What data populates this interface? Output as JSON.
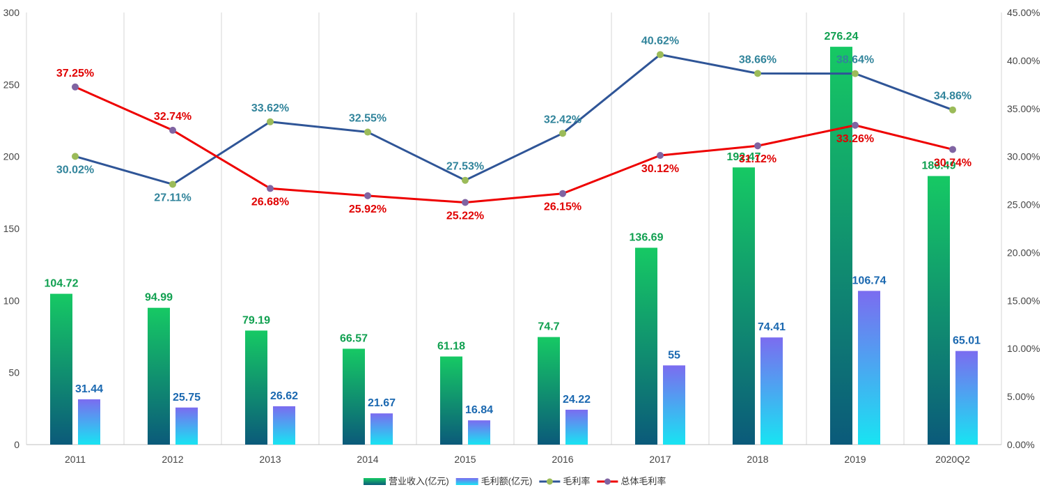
{
  "chart_data": {
    "type": "bar",
    "categories": [
      "2011",
      "2012",
      "2013",
      "2014",
      "2015",
      "2016",
      "2017",
      "2018",
      "2019",
      "2020Q2"
    ],
    "ylim": [
      0,
      300
    ],
    "yticks": [
      "0",
      "50",
      "100",
      "150",
      "200",
      "250",
      "300"
    ],
    "y2lim": [
      0,
      45
    ],
    "y2ticks": [
      "0.00%",
      "5.00%",
      "10.00%",
      "15.00%",
      "20.00%",
      "25.00%",
      "30.00%",
      "35.00%",
      "40.00%",
      "45.00%"
    ],
    "grid": "vertical",
    "legend_position": "bottom",
    "series": [
      {
        "name": "营业收入(亿元)",
        "kind": "bar",
        "axis": "left",
        "values": [
          104.72,
          94.99,
          79.19,
          66.57,
          61.18,
          74.7,
          136.69,
          192.47,
          276.24,
          186.49
        ],
        "labels": [
          "104.72",
          "94.99",
          "79.19",
          "66.57",
          "61.18",
          "74.7",
          "136.69",
          "192.47",
          "276.24",
          "186.49"
        ],
        "color_top": "#16c964",
        "color_bottom": "#0b5a7a",
        "label_color": "#10a050"
      },
      {
        "name": "毛利额(亿元)",
        "kind": "bar",
        "axis": "left",
        "values": [
          31.44,
          25.75,
          26.62,
          21.67,
          16.84,
          24.22,
          55,
          74.41,
          106.74,
          65.01
        ],
        "labels": [
          "31.44",
          "25.75",
          "26.62",
          "21.67",
          "16.84",
          "24.22",
          "55",
          "74.41",
          "106.74",
          "65.01"
        ],
        "color_top": "#7b6cf0",
        "color_bottom": "#18e4f2",
        "label_color": "#1a68b0"
      },
      {
        "name": "毛利率",
        "kind": "line",
        "axis": "right",
        "values": [
          30.02,
          27.11,
          33.62,
          32.55,
          27.53,
          32.42,
          40.62,
          38.66,
          38.64,
          34.86
        ],
        "labels": [
          "30.02%",
          "27.11%",
          "33.62%",
          "32.55%",
          "27.53%",
          "32.42%",
          "40.62%",
          "38.66%",
          "38.64%",
          "34.86%"
        ],
        "line_color": "#2f5597",
        "marker_color": "#9bbb59",
        "label_color": "#31849b"
      },
      {
        "name": "总体毛利率",
        "kind": "line",
        "axis": "right",
        "values": [
          37.25,
          32.74,
          26.68,
          25.92,
          25.22,
          26.15,
          30.12,
          31.12,
          33.26,
          30.74
        ],
        "labels": [
          "37.25%",
          "32.74%",
          "26.68%",
          "25.92%",
          "25.22%",
          "26.15%",
          "30.12%",
          "31.12%",
          "33.26%",
          "30.74%"
        ],
        "line_color": "#ee0000",
        "marker_color": "#8064a2",
        "label_color": "#e00000"
      }
    ]
  }
}
